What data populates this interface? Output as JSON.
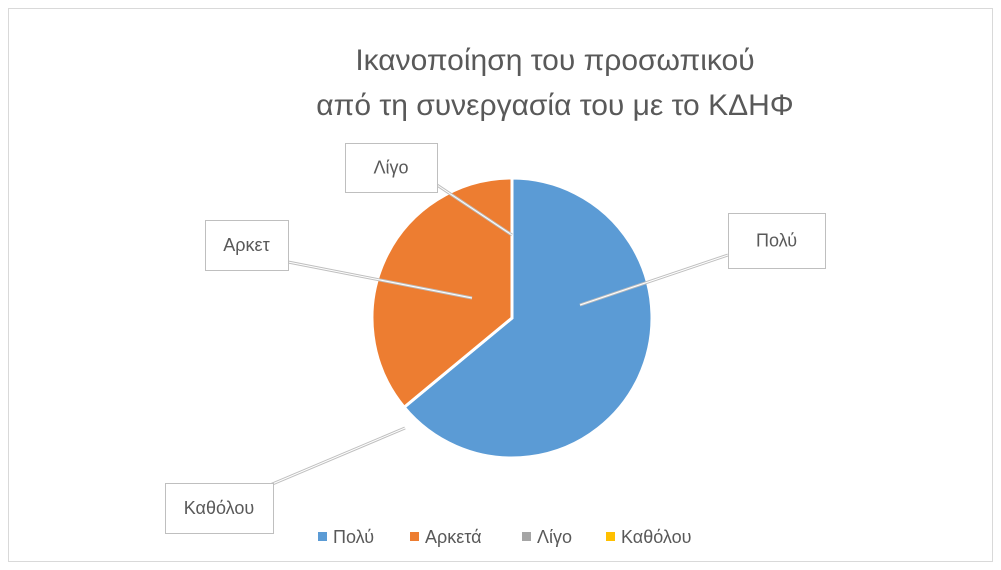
{
  "chart_data": {
    "type": "pie",
    "title": [
      "Ικανοποίηση του προσωπικού",
      "από τη συνεργασία του με το ΚΔΗΦ"
    ],
    "categories": [
      "Πολύ",
      "Αρκετά",
      "Λίγο",
      "Καθόλου"
    ],
    "values": [
      64,
      36,
      0,
      0
    ],
    "data_labels": [
      "Πολύ",
      "Αρκετ",
      "Λίγο",
      "Καθόλου"
    ],
    "colors": [
      "#5b9bd5",
      "#ed7d31",
      "#a5a5a5",
      "#ffc000"
    ],
    "legend": "bottom"
  }
}
